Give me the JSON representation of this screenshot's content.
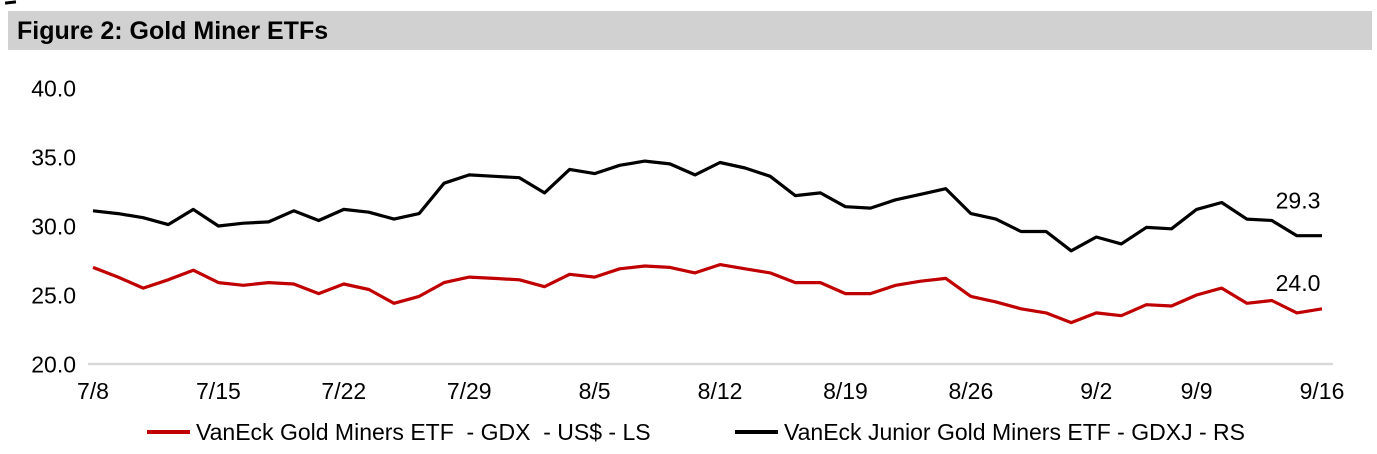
{
  "title": "Figure 2: Gold Miner ETFs",
  "chart_data": {
    "type": "line",
    "title": "Figure 2: Gold Miner ETFs",
    "xlabel": "",
    "ylabel": "",
    "ylim": [
      20.0,
      40.0
    ],
    "grid": "off",
    "baseline_color": "#d9d9d9",
    "legend_position": "bottom",
    "yticks": {
      "values": [
        40,
        35,
        30,
        25,
        20
      ],
      "labels": [
        "40.0",
        "35.0",
        "30.0",
        "25.0",
        "20.0"
      ]
    },
    "x": [
      "7/8",
      "7/11",
      "7/12",
      "7/13",
      "7/14",
      "7/15",
      "7/18",
      "7/19",
      "7/20",
      "7/21",
      "7/22",
      "7/25",
      "7/26",
      "7/27",
      "7/28",
      "7/29",
      "8/1",
      "8/2",
      "8/3",
      "8/4",
      "8/5",
      "8/8",
      "8/9",
      "8/10",
      "8/11",
      "8/12",
      "8/15",
      "8/16",
      "8/17",
      "8/18",
      "8/19",
      "8/22",
      "8/23",
      "8/24",
      "8/25",
      "8/26",
      "8/29",
      "8/30",
      "8/31",
      "9/1",
      "9/2",
      "9/6",
      "9/7",
      "9/8",
      "9/9",
      "9/12",
      "9/13",
      "9/14",
      "9/15",
      "9/16"
    ],
    "xtick_indices": [
      0,
      5,
      10,
      15,
      20,
      25,
      30,
      35,
      40,
      44,
      49
    ],
    "xtick_labels": [
      "7/8",
      "7/15",
      "7/22",
      "7/29",
      "8/5",
      "8/12",
      "8/19",
      "8/26",
      "9/2",
      "9/9",
      "9/16"
    ],
    "series": [
      {
        "name": "VanEck Gold Miners ETF  - GDX  - US$ - LS",
        "ticker": "GDX",
        "axis": "LS",
        "color": "#c00000",
        "end_label": "24.0",
        "values": [
          27.0,
          26.3,
          25.5,
          26.1,
          26.8,
          25.9,
          25.7,
          25.9,
          25.8,
          25.1,
          25.8,
          25.4,
          24.4,
          24.9,
          25.9,
          26.3,
          26.2,
          26.1,
          25.6,
          26.5,
          26.3,
          26.9,
          27.1,
          27.0,
          26.6,
          27.2,
          26.9,
          26.6,
          25.9,
          25.9,
          25.1,
          25.1,
          25.7,
          26.0,
          26.2,
          24.9,
          24.5,
          24.0,
          23.7,
          23.0,
          23.7,
          23.5,
          24.3,
          24.2,
          25.0,
          25.5,
          24.4,
          24.6,
          23.7,
          24.0
        ]
      },
      {
        "name": "VanEck Junior Gold Miners ETF - GDXJ - RS",
        "ticker": "GDXJ",
        "axis": "RS",
        "color": "#000000",
        "end_label": "29.3",
        "values": [
          31.1,
          30.9,
          30.6,
          30.1,
          31.2,
          30.0,
          30.2,
          30.3,
          31.1,
          30.4,
          31.2,
          31.0,
          30.5,
          30.9,
          33.1,
          33.7,
          33.6,
          33.5,
          32.4,
          34.1,
          33.8,
          34.4,
          34.7,
          34.5,
          33.7,
          34.6,
          34.2,
          33.6,
          32.2,
          32.4,
          31.4,
          31.3,
          31.9,
          32.3,
          32.7,
          30.9,
          30.5,
          29.6,
          29.6,
          28.2,
          29.2,
          28.7,
          29.9,
          29.8,
          31.2,
          31.7,
          30.5,
          30.4,
          29.3,
          29.3
        ]
      }
    ]
  },
  "legend": {
    "items": [
      {
        "label": "VanEck Gold Miners ETF  - GDX  - US$ - LS",
        "color": "#c00000"
      },
      {
        "label": "VanEck Junior Gold Miners ETF - GDXJ - RS",
        "color": "#000000"
      }
    ]
  }
}
